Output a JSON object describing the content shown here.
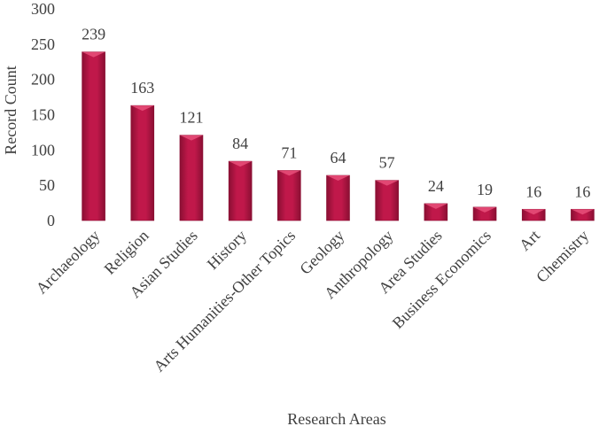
{
  "chart_data": {
    "type": "bar",
    "categories": [
      "Archaeology",
      "Religion",
      "Asian Studies",
      "History",
      "Arts Humanities-Other Topics",
      "Geology",
      "Anthropology",
      "Area Studies",
      "Business Economics",
      "Art",
      "Chemistry"
    ],
    "values": [
      239,
      163,
      121,
      84,
      71,
      64,
      57,
      24,
      19,
      16,
      16
    ],
    "xlabel": "Research Areas",
    "ylabel": "Record Count",
    "ylim": [
      0,
      300
    ],
    "yticks": [
      0,
      50,
      100,
      150,
      200,
      250,
      300
    ],
    "grid": false,
    "legend": "none",
    "bar_color": "#c0184a",
    "bar_color_dark": "#8a0f33",
    "bar_color_light": "#e8507a"
  }
}
